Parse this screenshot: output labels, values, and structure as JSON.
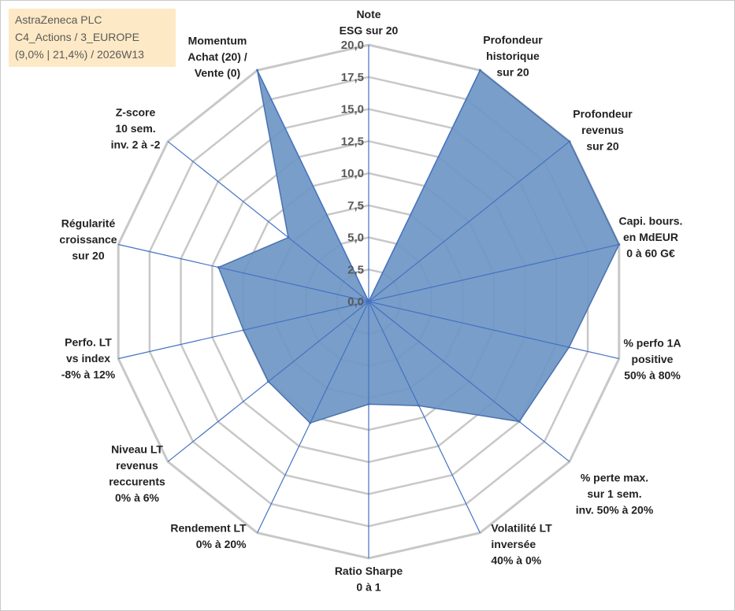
{
  "info_box": {
    "line1": "AstraZeneca PLC",
    "line2": "C4_Actions / 3_EUROPE",
    "line3": "(9,0% | 21,4%) / 2026W13"
  },
  "colors": {
    "fill": "#6e96c4",
    "stroke": "#4a72b0",
    "grid": "#c8c8c8",
    "spoke": "#4472c4"
  },
  "chart_data": {
    "type": "radar",
    "rlim": [
      0,
      20
    ],
    "ticks": [
      "0,0",
      "2,5",
      "5,0",
      "7,5",
      "10,0",
      "12,5",
      "15,0",
      "17,5",
      "20,0"
    ],
    "axes": [
      {
        "lines": [
          "Note",
          "ESG sur 20"
        ]
      },
      {
        "lines": [
          "Profondeur",
          "historique",
          "sur 20"
        ]
      },
      {
        "lines": [
          "Profondeur",
          "revenus",
          "sur 20"
        ]
      },
      {
        "lines": [
          "Capi. bours.",
          "en MdEUR",
          "0 à 60 G€"
        ]
      },
      {
        "lines": [
          "% perfo 1A",
          "positive",
          "50% à 80%"
        ]
      },
      {
        "lines": [
          "% perte max.",
          "sur 1 sem.",
          "inv. 50% à 20%"
        ]
      },
      {
        "lines": [
          "Volatilité LT",
          "inversée",
          "40% à 0%"
        ]
      },
      {
        "lines": [
          "Ratio Sharpe",
          "0 à 1"
        ]
      },
      {
        "lines": [
          "Rendement LT",
          "0% à 20%"
        ]
      },
      {
        "lines": [
          "Niveau LT",
          "revenus",
          "reccurents",
          "0% à 6%"
        ]
      },
      {
        "lines": [
          "Perfo. LT",
          "vs index",
          "-8% à 12%"
        ]
      },
      {
        "lines": [
          "Régularité",
          "croissance",
          "sur 20"
        ]
      },
      {
        "lines": [
          "Z-score",
          "10 sem.",
          "inv. 2 à -2"
        ]
      },
      {
        "lines": [
          "Momentum",
          "Achat (20) /",
          "Vente (0)"
        ]
      }
    ],
    "series": [
      {
        "values": [
          0.0,
          20.0,
          20.0,
          20.0,
          16.0,
          15.0,
          9.0,
          8.0,
          10.5,
          10.0,
          10.0,
          12.0,
          8.0,
          20.0
        ]
      }
    ],
    "grid": true,
    "legend": "none"
  }
}
